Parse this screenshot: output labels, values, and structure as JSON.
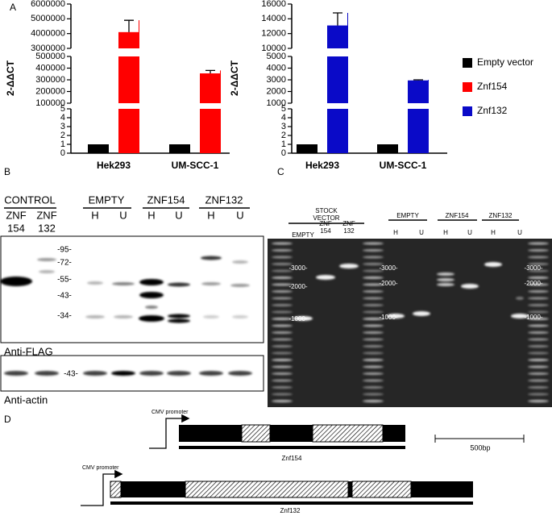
{
  "chart_data": [
    {
      "type": "bar",
      "ylabel": "2-ΔΔCT",
      "categories": [
        "Hek293",
        "UM-SCC-1"
      ],
      "y_segments": [
        {
          "ylim": [
            0,
            5
          ],
          "yticks": [
            0,
            1,
            2,
            3,
            4,
            5
          ]
        },
        {
          "ylim": [
            100000,
            500000
          ],
          "yticks": [
            100000,
            200000,
            300000,
            400000,
            500000
          ]
        },
        {
          "ylim": [
            3000000,
            6000000
          ],
          "yticks": [
            3000000,
            4000000,
            5000000,
            6000000
          ]
        }
      ],
      "series": [
        {
          "name": "Empty vector",
          "color": "#000000",
          "values": [
            1,
            1
          ]
        },
        {
          "name": "Znf154",
          "color": "#ff0000",
          "values": [
            4100000,
            355000
          ],
          "errors": [
            800000,
            25000
          ]
        }
      ]
    },
    {
      "type": "bar",
      "ylabel": "2-ΔΔCT",
      "categories": [
        "Hek293",
        "UM-SCC-1"
      ],
      "y_segments": [
        {
          "ylim": [
            0,
            5
          ],
          "yticks": [
            0,
            1,
            2,
            3,
            4,
            5
          ]
        },
        {
          "ylim": [
            1000,
            5000
          ],
          "yticks": [
            1000,
            2000,
            3000,
            4000,
            5000
          ]
        },
        {
          "ylim": [
            10000,
            16000
          ],
          "yticks": [
            10000,
            12000,
            14000,
            16000
          ]
        }
      ],
      "series": [
        {
          "color": "#000000",
          "values": [
            1,
            1
          ]
        },
        {
          "name": "Znf132",
          "color": "#0a0ac8",
          "values": [
            13100,
            2950
          ],
          "errors": [
            1700,
            50
          ]
        }
      ]
    }
  ],
  "panel_labels": [
    "A",
    "B",
    "C",
    "D"
  ],
  "blot": {
    "control": "CONTROL",
    "control_lanes": [
      [
        "ZNF",
        "154"
      ],
      [
        "ZNF",
        "132"
      ]
    ],
    "groups": [
      "EMPTY",
      "ZNF154",
      "ZNF132"
    ],
    "lanes": [
      "H",
      "U",
      "H",
      "U",
      "H",
      "U"
    ],
    "markers": [
      "-95-",
      "-72-",
      "-55-",
      "-43-",
      "-34-"
    ],
    "flag_label": "Anti-FLAG",
    "actin_marker": "-43-",
    "actin_label": "Anti-actin"
  },
  "gel": {
    "stock": [
      "STOCK",
      "VECTOR"
    ],
    "stock_lanes": [
      [
        "EMPTY"
      ],
      [
        "ZNF",
        "154"
      ],
      [
        "ZNF",
        "132"
      ]
    ],
    "groups": [
      "EMPTY",
      "ZNF154",
      "ZNF132"
    ],
    "lanes": [
      "H",
      "U",
      "H",
      "U",
      "H",
      "U"
    ],
    "markers": [
      [
        "-3000-",
        "-2000-",
        "-1000-"
      ],
      [
        "-3000-",
        "-2000-",
        "-1000-"
      ],
      [
        "-3000-",
        "-2000-",
        "-1000-"
      ]
    ]
  },
  "diagram": {
    "promoter": [
      "CMV promoter",
      "CMV promoter"
    ],
    "constructs": [
      "Znf154",
      "Znf132"
    ],
    "scale": "500bp"
  }
}
